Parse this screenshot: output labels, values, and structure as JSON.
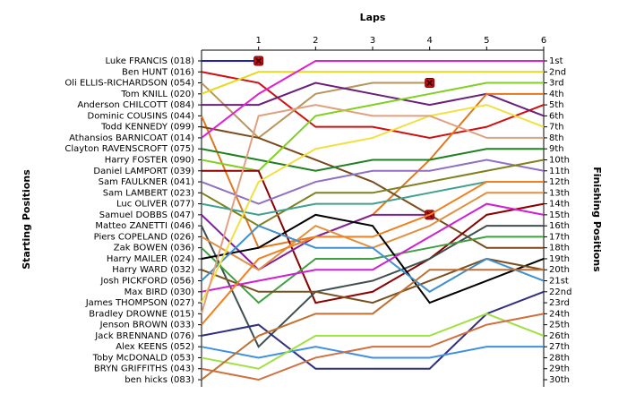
{
  "chart_data": {
    "type": "line",
    "x_label": "Laps",
    "y_label": "Starting Positions",
    "y2_label": "Finishing Positions",
    "x": [
      0,
      1,
      2,
      3,
      4,
      5,
      6
    ],
    "xlim": [
      0,
      6
    ],
    "xticks": [
      1,
      2,
      3,
      4,
      5,
      6
    ],
    "ylim": [
      1,
      30
    ],
    "y_inverted": true,
    "yticks": [
      1,
      2,
      3,
      4,
      5,
      6,
      7,
      8,
      9,
      10,
      11,
      12,
      13,
      14,
      15,
      16,
      17,
      18,
      19,
      20,
      21,
      22,
      23,
      24,
      25,
      26,
      27,
      28,
      29,
      30
    ],
    "y2lim": [
      1,
      30
    ],
    "y2ticks": [
      {
        "value": 1,
        "label": "1st"
      },
      {
        "value": 2,
        "label": "2nd"
      },
      {
        "value": 3,
        "label": "3rd"
      },
      {
        "value": 4,
        "label": "4th"
      },
      {
        "value": 5,
        "label": "5th"
      },
      {
        "value": 6,
        "label": "6th"
      },
      {
        "value": 7,
        "label": "7th"
      },
      {
        "value": 8,
        "label": "8th"
      },
      {
        "value": 9,
        "label": "9th"
      },
      {
        "value": 10,
        "label": "10th"
      },
      {
        "value": 11,
        "label": "11th"
      },
      {
        "value": 12,
        "label": "12th"
      },
      {
        "value": 13,
        "label": "13th"
      },
      {
        "value": 14,
        "label": "14th"
      },
      {
        "value": 15,
        "label": "15th"
      },
      {
        "value": 16,
        "label": "16th"
      },
      {
        "value": 17,
        "label": "17th"
      },
      {
        "value": 18,
        "label": "18th"
      },
      {
        "value": 19,
        "label": "19th"
      },
      {
        "value": 20,
        "label": "20th"
      },
      {
        "value": 21,
        "label": "21st"
      },
      {
        "value": 22,
        "label": "22nd"
      },
      {
        "value": 23,
        "label": "23rd"
      },
      {
        "value": 24,
        "label": "24th"
      },
      {
        "value": 25,
        "label": "25th"
      },
      {
        "value": 26,
        "label": "26th"
      },
      {
        "value": 27,
        "label": "27th"
      },
      {
        "value": 28,
        "label": "28th"
      },
      {
        "value": 29,
        "label": "29th"
      },
      {
        "value": 30,
        "label": "30th"
      }
    ],
    "series": [
      {
        "name": "Luke FRANCIS (018)",
        "color": "#1c1cc8",
        "values": [
          1,
          1,
          null,
          null,
          null,
          null,
          null
        ],
        "end_marker": "x"
      },
      {
        "name": "Ben HUNT (016)",
        "color": "#d01010",
        "values": [
          2,
          3,
          7,
          7,
          8,
          7,
          5
        ]
      },
      {
        "name": "Oli ELLIS-RICHARDSON (054)",
        "color": "#b8955a",
        "values": [
          3,
          8,
          4,
          3,
          3,
          null,
          null
        ],
        "end_marker": "x"
      },
      {
        "name": "Tom KNILL (020)",
        "color": "#e8d820",
        "values": [
          4,
          2,
          2,
          2,
          2,
          2,
          2
        ]
      },
      {
        "name": "Anderson CHILCOTT (084)",
        "color": "#6a1f7a",
        "values": [
          5,
          5,
          3,
          4,
          5,
          4,
          6
        ]
      },
      {
        "name": "Dominic COUSINS (044)",
        "color": "#e07820",
        "values": [
          6,
          18,
          17,
          15,
          10,
          4,
          4
        ]
      },
      {
        "name": "Todd KENNEDY (099)",
        "color": "#7a4a1a",
        "values": [
          7,
          8,
          10,
          12,
          15,
          18,
          18
        ]
      },
      {
        "name": "Athansios BARNICOAT (014)",
        "color": "#e020d0",
        "values": [
          8,
          4,
          1,
          1,
          1,
          1,
          1
        ]
      },
      {
        "name": "Clayton RAVENSCROFT (075)",
        "color": "#208020",
        "values": [
          9,
          10,
          11,
          10,
          10,
          9,
          9
        ]
      },
      {
        "name": "Harry FOSTER (090)",
        "color": "#80d020",
        "values": [
          10,
          11,
          6,
          5,
          4,
          3,
          3
        ]
      },
      {
        "name": "Daniel LAMPORT (039)",
        "color": "#8b0000",
        "values": [
          11,
          11,
          23,
          22,
          19,
          15,
          14
        ]
      },
      {
        "name": "Sam FAULKNER (041)",
        "color": "#9070c0",
        "values": [
          12,
          14,
          12,
          11,
          11,
          10,
          11
        ]
      },
      {
        "name": "Sam LAMBERT (023)",
        "color": "#808020",
        "values": [
          13,
          16,
          13,
          13,
          12,
          11,
          10
        ]
      },
      {
        "name": "Luc OLIVER (077)",
        "color": "#40a090",
        "values": [
          14,
          15,
          14,
          14,
          13,
          12,
          12
        ]
      },
      {
        "name": "Samuel DOBBS (047)",
        "color": "#8020a0",
        "values": [
          15,
          20,
          17,
          15,
          15,
          null,
          null
        ],
        "end_marker": "x"
      },
      {
        "name": "Matteo ZANETTI (046)",
        "color": "#405050",
        "values": [
          16,
          27,
          22,
          21,
          19,
          16,
          16
        ]
      },
      {
        "name": "Piers COPELAND (026)",
        "color": "#e09040",
        "values": [
          17,
          20,
          16,
          18,
          16,
          13,
          13
        ]
      },
      {
        "name": "Zak BOWEN (036)",
        "color": "#40a040",
        "values": [
          18,
          23,
          19,
          19,
          18,
          17,
          17
        ]
      },
      {
        "name": "Harry MAILER (024)",
        "color": "#000000",
        "values": [
          19,
          18,
          15,
          16,
          23,
          21,
          19
        ]
      },
      {
        "name": "Harry WARD (032)",
        "color": "#7a5020",
        "values": [
          20,
          22,
          22,
          23,
          21,
          19,
          20
        ]
      },
      {
        "name": "Josh PICKFORD (056)",
        "color": "#4090d0",
        "values": [
          21,
          16,
          18,
          18,
          22,
          19,
          21
        ]
      },
      {
        "name": "Max BIRD (030)",
        "color": "#d020d0",
        "values": [
          22,
          21,
          20,
          20,
          17,
          14,
          15
        ]
      },
      {
        "name": "James THOMPSON (027)",
        "color": "#f0e040",
        "values": [
          23,
          12,
          9,
          8,
          6,
          5,
          7
        ]
      },
      {
        "name": "Bradley DROWNE (015)",
        "color": "#e0a080",
        "values": [
          24,
          6,
          5,
          6,
          6,
          8,
          8
        ]
      },
      {
        "name": "Jenson BROWN (033)",
        "color": "#f08020",
        "values": [
          25,
          19,
          17,
          17,
          15,
          12,
          12
        ]
      },
      {
        "name": "Jack BRENNAND (076)",
        "color": "#303080",
        "values": [
          26,
          25,
          29,
          29,
          29,
          24,
          22
        ]
      },
      {
        "name": "Alex KEENS (052)",
        "color": "#4090e0",
        "values": [
          27,
          28,
          27,
          28,
          28,
          27,
          27
        ]
      },
      {
        "name": "Toby McDONALD (053)",
        "color": "#a0e040",
        "values": [
          28,
          29,
          26,
          26,
          26,
          24,
          26
        ]
      },
      {
        "name": "BRYN GRIFFITHS (043)",
        "color": "#d07040",
        "values": [
          29,
          30,
          28,
          27,
          27,
          25,
          24
        ]
      },
      {
        "name": "ben hicks (083)",
        "color": "#c07030",
        "values": [
          30,
          26,
          24,
          24,
          20,
          20,
          20
        ]
      }
    ]
  }
}
